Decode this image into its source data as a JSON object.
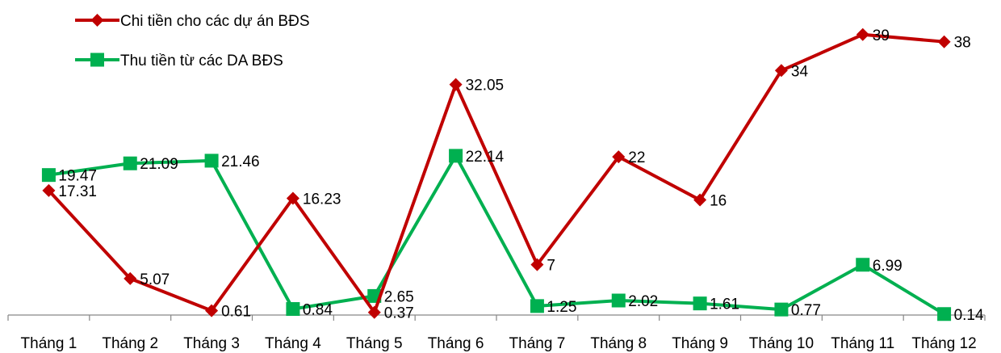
{
  "chart_data": {
    "type": "line",
    "categories": [
      "Tháng 1",
      "Tháng 2",
      "Tháng 3",
      "Tháng 4",
      "Tháng 5",
      "Tháng 6",
      "Tháng 7",
      "Tháng 8",
      "Tháng 9",
      "Tháng 10",
      "Tháng 11",
      "Tháng 12"
    ],
    "series": [
      {
        "name": "Chi tiền cho các dự án BĐS",
        "color": "#c00000",
        "marker": "diamond",
        "values": [
          17.31,
          5.07,
          0.61,
          16.23,
          0.37,
          32.05,
          7,
          22,
          16,
          34,
          39,
          38
        ],
        "labels": [
          "17.31",
          "5.07",
          "0.61",
          "16.23",
          "0.37",
          "32.05",
          "7",
          "22",
          "16",
          "34",
          "39",
          "38"
        ]
      },
      {
        "name": "Thu tiền từ các DA BĐS",
        "color": "#00b050",
        "marker": "square",
        "values": [
          19.47,
          21.09,
          21.46,
          0.84,
          2.65,
          22.14,
          1.25,
          2.02,
          1.61,
          0.77,
          6.99,
          0.14
        ],
        "labels": [
          "19.47",
          "21.09",
          "21.46",
          "0.84",
          "2.65",
          "22.14",
          "1.25",
          "2.02",
          "1.61",
          "0.77",
          "6.99",
          "0.14"
        ]
      }
    ],
    "ylim": [
      0,
      43
    ],
    "grid": false,
    "legend_position": "top-left",
    "title": "",
    "xlabel": "",
    "ylabel": ""
  }
}
